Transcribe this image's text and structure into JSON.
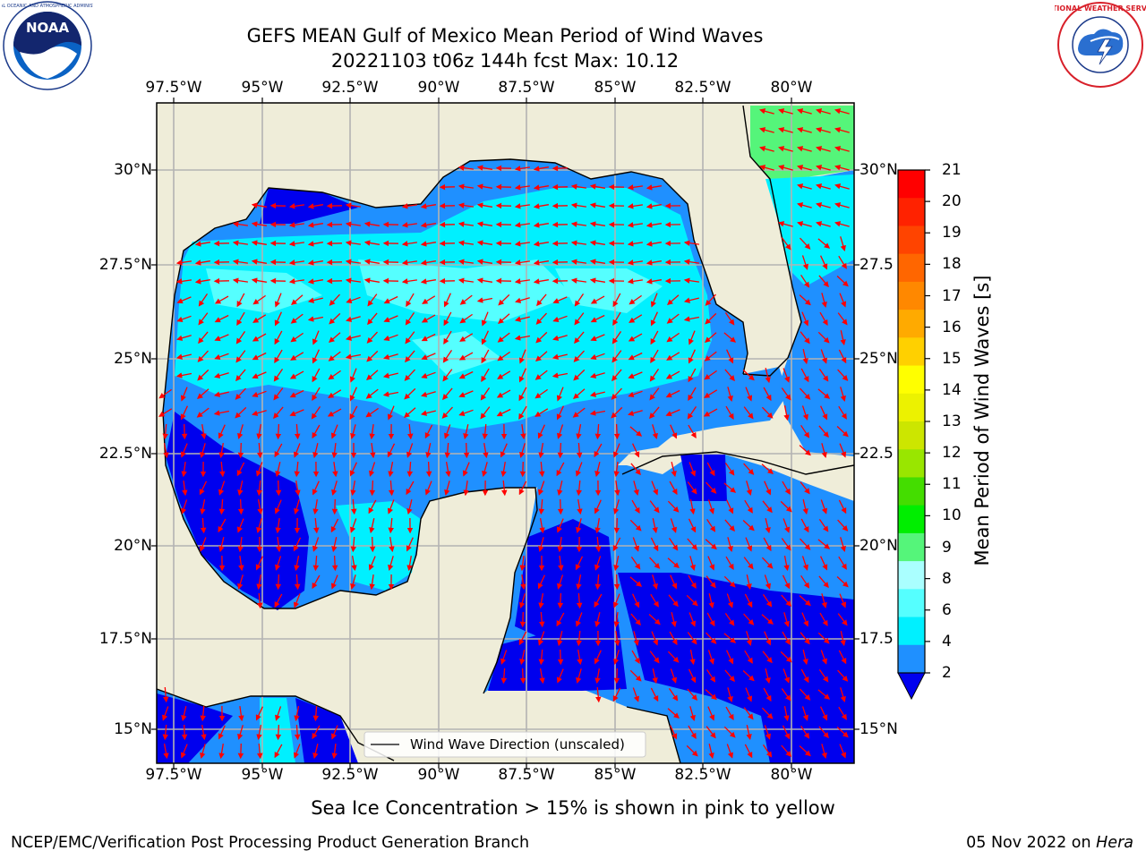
{
  "title_line1": "GEFS MEAN Gulf of Mexico Mean Period of Wind Waves",
  "title_line2": "20221103 t06z 144h fcst   Max: 10.12",
  "logos": {
    "noaa_text": "NOAA",
    "noaa_ring": "NATIONAL OCEANIC AND ATMOSPHERIC ADMINISTRATION · U.S. DEPARTMENT OF COMMERCE",
    "nws_ring": "NATIONAL WEATHER SERVICE"
  },
  "axes": {
    "lon_ticks": [
      "97.5°W",
      "95°W",
      "92.5°W",
      "90°W",
      "87.5°W",
      "85°W",
      "82.5°W",
      "80°W"
    ],
    "lat_ticks_left": [
      "30°N",
      "27.5°N",
      "25°N",
      "22.5°N",
      "20°N",
      "17.5°N",
      "15°N"
    ],
    "lat_ticks_right": [
      "30°N",
      "27.5",
      "25°N",
      "22.5",
      "20°N",
      "17.5",
      "15°N"
    ]
  },
  "legend": {
    "label": "Wind Wave Direction (unscaled)"
  },
  "colorbar": {
    "label": "Mean Period of Wind Waves [s]",
    "tick_labels": [
      "21",
      "20",
      "19",
      "18",
      "17",
      "16",
      "15",
      "14",
      "13",
      "12",
      "11",
      "10",
      "9",
      "8",
      "6",
      "4",
      "2"
    ],
    "colors": [
      "#ff0000",
      "#ff2200",
      "#ff4400",
      "#ff6600",
      "#ff8800",
      "#ffaa00",
      "#ffd000",
      "#ffff00",
      "#ecf200",
      "#cce600",
      "#99e600",
      "#44dd00",
      "#00ee00",
      "#55f57a",
      "#aaffff",
      "#55ffff",
      "#00f0ff",
      "#1f90ff",
      "#0000ee"
    ]
  },
  "footer": {
    "left": "NCEP/EMC/Verification Post Processing Product Generation Branch",
    "right_date": "05 Nov 2022 on ",
    "right_machine": "Hera"
  },
  "subtitle": "Sea Ice Concentration > 15% is shown in pink to yellow"
}
